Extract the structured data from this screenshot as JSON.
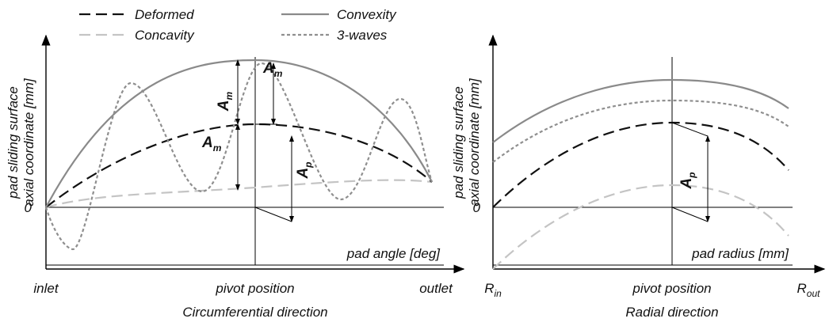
{
  "legend": [
    "Deformed",
    "Convexity",
    "Concavity",
    "3-waves"
  ],
  "left": {
    "y_label": [
      "pad sliding surface",
      "axial coordinate [mm]"
    ],
    "zero": "0",
    "x_label": "pad angle [deg]",
    "ticks": [
      "inlet",
      "pivot position",
      "outlet"
    ],
    "caption": "Circumferential direction",
    "annotations": [
      {
        "symbol": "A",
        "sub": "m"
      },
      {
        "symbol": "A",
        "sub": "m"
      },
      {
        "symbol": "A",
        "sub": "m"
      },
      {
        "symbol": "A",
        "sub": "p"
      }
    ]
  },
  "right": {
    "y_label": [
      "pad sliding surface",
      "axial coordinate [mm]"
    ],
    "zero": "0",
    "x_label": "pad radius [mm]",
    "ticks": [
      {
        "symbol": "R",
        "sub": "in"
      },
      "pivot position",
      {
        "symbol": "R",
        "sub": "out"
      }
    ],
    "caption": "Radial direction",
    "annotations": [
      {
        "symbol": "A",
        "sub": "p"
      }
    ]
  }
}
